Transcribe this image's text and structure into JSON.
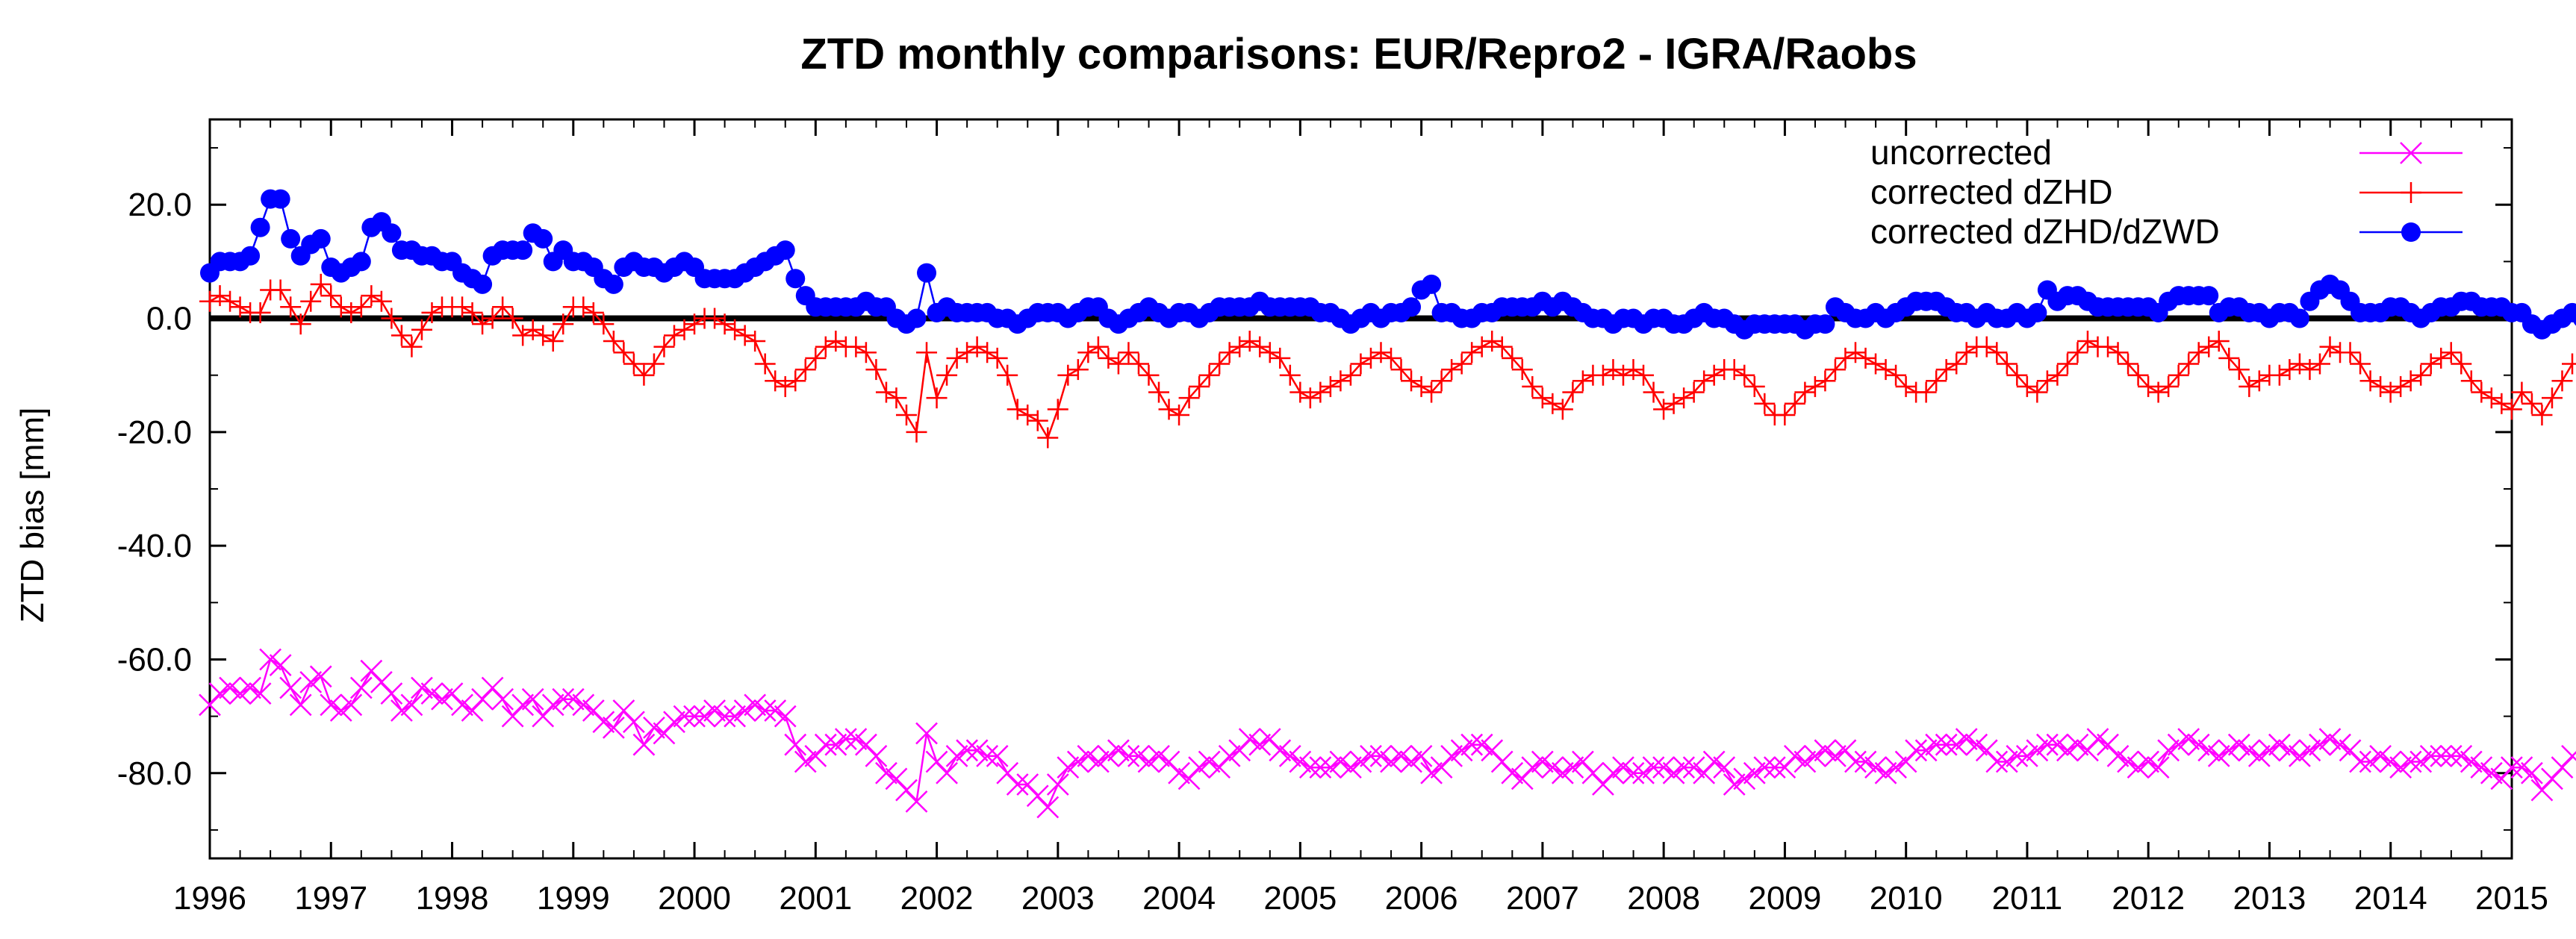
{
  "chart_data": {
    "type": "line",
    "title": "ZTD monthly comparisons: EUR/Repro2 - IGRA/Raobs",
    "xlabel": "",
    "ylabel": "ZTD bias [mm]",
    "xlim": [
      1996,
      2015
    ],
    "ylim": [
      -95,
      35
    ],
    "x_ticks": [
      "1996",
      "1997",
      "1998",
      "1999",
      "2000",
      "2001",
      "2002",
      "2003",
      "2004",
      "2005",
      "2006",
      "2007",
      "2008",
      "2009",
      "2010",
      "2011",
      "2012",
      "2013",
      "2014",
      "2015"
    ],
    "y_ticks": [
      "20.0",
      "0.0",
      "-20.0",
      "-40.0",
      "-60.0",
      "-80.0"
    ],
    "y_tick_values": [
      20,
      0,
      -20,
      -40,
      -60,
      -80
    ],
    "zero_line": true,
    "grid": false,
    "legend_position": "top-right",
    "x_start": 1996.0,
    "x_step": 0.08333,
    "series": [
      {
        "name": "uncorrected",
        "color": "#ff00ff",
        "marker": "x",
        "values": [
          -68,
          -66,
          -65,
          -66,
          -65,
          -66,
          -60,
          -61,
          -65,
          -68,
          -64,
          -63,
          -68,
          -69,
          -68,
          -65,
          -62,
          -64,
          -66,
          -69,
          -68,
          -65,
          -66,
          -67,
          -66,
          -68,
          -69,
          -67,
          -65,
          -67,
          -70,
          -68,
          -67,
          -70,
          -68,
          -67,
          -67,
          -68,
          -69,
          -71,
          -72,
          -69,
          -71,
          -75,
          -72,
          -73,
          -71,
          -70,
          -70,
          -70,
          -69,
          -70,
          -70,
          -69,
          -68,
          -69,
          -69,
          -70,
          -75,
          -78,
          -77,
          -75,
          -75,
          -74,
          -74,
          -75,
          -77,
          -80,
          -81,
          -83,
          -85,
          -73,
          -78,
          -80,
          -77,
          -76,
          -76,
          -77,
          -77,
          -80,
          -82,
          -82,
          -84,
          -86,
          -82,
          -79,
          -78,
          -77,
          -78,
          -77,
          -76,
          -77,
          -77,
          -78,
          -77,
          -78,
          -80,
          -81,
          -79,
          -78,
          -79,
          -77,
          -76,
          -74,
          -75,
          -74,
          -76,
          -77,
          -78,
          -79,
          -79,
          -79,
          -78,
          -79,
          -78,
          -77,
          -77,
          -78,
          -77,
          -78,
          -77,
          -80,
          -79,
          -77,
          -76,
          -75,
          -75,
          -76,
          -78,
          -80,
          -81,
          -79,
          -78,
          -79,
          -80,
          -79,
          -78,
          -80,
          -82,
          -80,
          -79,
          -80,
          -80,
          -79,
          -79,
          -80,
          -79,
          -79,
          -80,
          -78,
          -79,
          -82,
          -81,
          -80,
          -79,
          -79,
          -79,
          -77,
          -78,
          -77,
          -76,
          -77,
          -76,
          -78,
          -78,
          -79,
          -80,
          -79,
          -78,
          -76,
          -76,
          -75,
          -75,
          -75,
          -74,
          -75,
          -76,
          -78,
          -78,
          -77,
          -77,
          -76,
          -75,
          -75,
          -76,
          -75,
          -76,
          -74,
          -75,
          -77,
          -78,
          -79,
          -78,
          -79,
          -76,
          -75,
          -74,
          -75,
          -76,
          -77,
          -76,
          -75,
          -76,
          -77,
          -76,
          -75,
          -76,
          -77,
          -76,
          -75,
          -74,
          -75,
          -76,
          -78,
          -78,
          -77,
          -78,
          -79,
          -78,
          -78,
          -77,
          -77,
          -77,
          -77,
          -78,
          -79,
          -80,
          -81,
          -79,
          -79,
          -80,
          -83,
          -81,
          -79,
          -77
        ]
      },
      {
        "name": "corrected dZHD",
        "color": "#ff0000",
        "marker": "+",
        "values": [
          3,
          4,
          3,
          2,
          1,
          1,
          5,
          5,
          2,
          -1,
          3,
          6,
          4,
          2,
          1,
          2,
          4,
          3,
          0,
          -3,
          -5,
          -2,
          1,
          2,
          2,
          2,
          1,
          -1,
          0,
          2,
          0,
          -3,
          -2,
          -3,
          -4,
          -1,
          2,
          2,
          1,
          -1,
          -4,
          -6,
          -8,
          -10,
          -8,
          -5,
          -3,
          -2,
          -1,
          0,
          0,
          -1,
          -2,
          -3,
          -4,
          -8,
          -11,
          -12,
          -11,
          -9,
          -7,
          -5,
          -4,
          -5,
          -5,
          -6,
          -9,
          -13,
          -14,
          -17,
          -20,
          -6,
          -14,
          -10,
          -7,
          -6,
          -5,
          -6,
          -7,
          -10,
          -16,
          -17,
          -18,
          -21,
          -16,
          -10,
          -9,
          -6,
          -5,
          -7,
          -8,
          -6,
          -8,
          -10,
          -13,
          -16,
          -17,
          -14,
          -12,
          -10,
          -8,
          -6,
          -5,
          -4,
          -5,
          -6,
          -7,
          -10,
          -13,
          -14,
          -13,
          -12,
          -11,
          -10,
          -8,
          -7,
          -6,
          -7,
          -9,
          -11,
          -12,
          -13,
          -11,
          -9,
          -8,
          -6,
          -5,
          -4,
          -5,
          -7,
          -9,
          -12,
          -14,
          -15,
          -16,
          -13,
          -11,
          -10,
          -10,
          -9,
          -10,
          -9,
          -10,
          -13,
          -16,
          -15,
          -14,
          -13,
          -11,
          -10,
          -9,
          -9,
          -10,
          -12,
          -15,
          -17,
          -17,
          -15,
          -13,
          -12,
          -11,
          -9,
          -7,
          -6,
          -7,
          -8,
          -9,
          -10,
          -12,
          -13,
          -13,
          -11,
          -9,
          -8,
          -6,
          -5,
          -5,
          -6,
          -8,
          -10,
          -12,
          -13,
          -11,
          -10,
          -8,
          -6,
          -4,
          -5,
          -5,
          -6,
          -8,
          -10,
          -12,
          -13,
          -12,
          -10,
          -8,
          -6,
          -5,
          -4,
          -7,
          -9,
          -12,
          -11,
          -10,
          -10,
          -9,
          -8,
          -9,
          -8,
          -5,
          -6,
          -6,
          -8,
          -11,
          -12,
          -13,
          -12,
          -11,
          -10,
          -8,
          -7,
          -6,
          -8,
          -11,
          -13,
          -14,
          -15,
          -16,
          -13,
          -15,
          -17,
          -14,
          -11,
          -8
        ]
      },
      {
        "name": "corrected dZHD/dZWD",
        "color": "#0000ff",
        "marker": "circle",
        "values": [
          8,
          10,
          10,
          10,
          11,
          16,
          21,
          21,
          14,
          11,
          13,
          14,
          9,
          8,
          9,
          10,
          16,
          17,
          15,
          12,
          12,
          11,
          11,
          10,
          10,
          8,
          7,
          6,
          11,
          12,
          12,
          12,
          15,
          14,
          10,
          12,
          10,
          10,
          9,
          7,
          6,
          9,
          10,
          9,
          9,
          8,
          9,
          10,
          9,
          7,
          7,
          7,
          7,
          8,
          9,
          10,
          11,
          12,
          7,
          4,
          2,
          2,
          2,
          2,
          2,
          3,
          2,
          2,
          0,
          -1,
          0,
          8,
          1,
          2,
          1,
          1,
          1,
          1,
          0,
          0,
          -1,
          0,
          1,
          1,
          1,
          0,
          1,
          2,
          2,
          0,
          -1,
          0,
          1,
          2,
          1,
          0,
          1,
          1,
          0,
          1,
          2,
          2,
          2,
          2,
          3,
          2,
          2,
          2,
          2,
          2,
          1,
          1,
          0,
          -1,
          0,
          1,
          0,
          1,
          1,
          2,
          5,
          6,
          1,
          1,
          0,
          0,
          1,
          1,
          2,
          2,
          2,
          2,
          3,
          2,
          3,
          2,
          1,
          0,
          0,
          -1,
          0,
          0,
          -1,
          0,
          0,
          -1,
          -1,
          0,
          1,
          0,
          0,
          -1,
          -2,
          -1,
          -1,
          -1,
          -1,
          -1,
          -2,
          -1,
          -1,
          2,
          1,
          0,
          0,
          1,
          0,
          1,
          2,
          3,
          3,
          3,
          2,
          1,
          1,
          0,
          1,
          0,
          0,
          1,
          0,
          1,
          5,
          3,
          4,
          4,
          3,
          2,
          2,
          2,
          2,
          2,
          2,
          1,
          3,
          4,
          4,
          4,
          4,
          1,
          2,
          2,
          1,
          1,
          0,
          1,
          1,
          0,
          3,
          5,
          6,
          5,
          3,
          1,
          1,
          1,
          2,
          2,
          1,
          0,
          1,
          2,
          2,
          3,
          3,
          2,
          2,
          2,
          1,
          1,
          -1,
          -2,
          -1,
          0,
          1,
          0,
          3,
          1,
          0,
          0,
          0,
          0
        ]
      }
    ]
  }
}
